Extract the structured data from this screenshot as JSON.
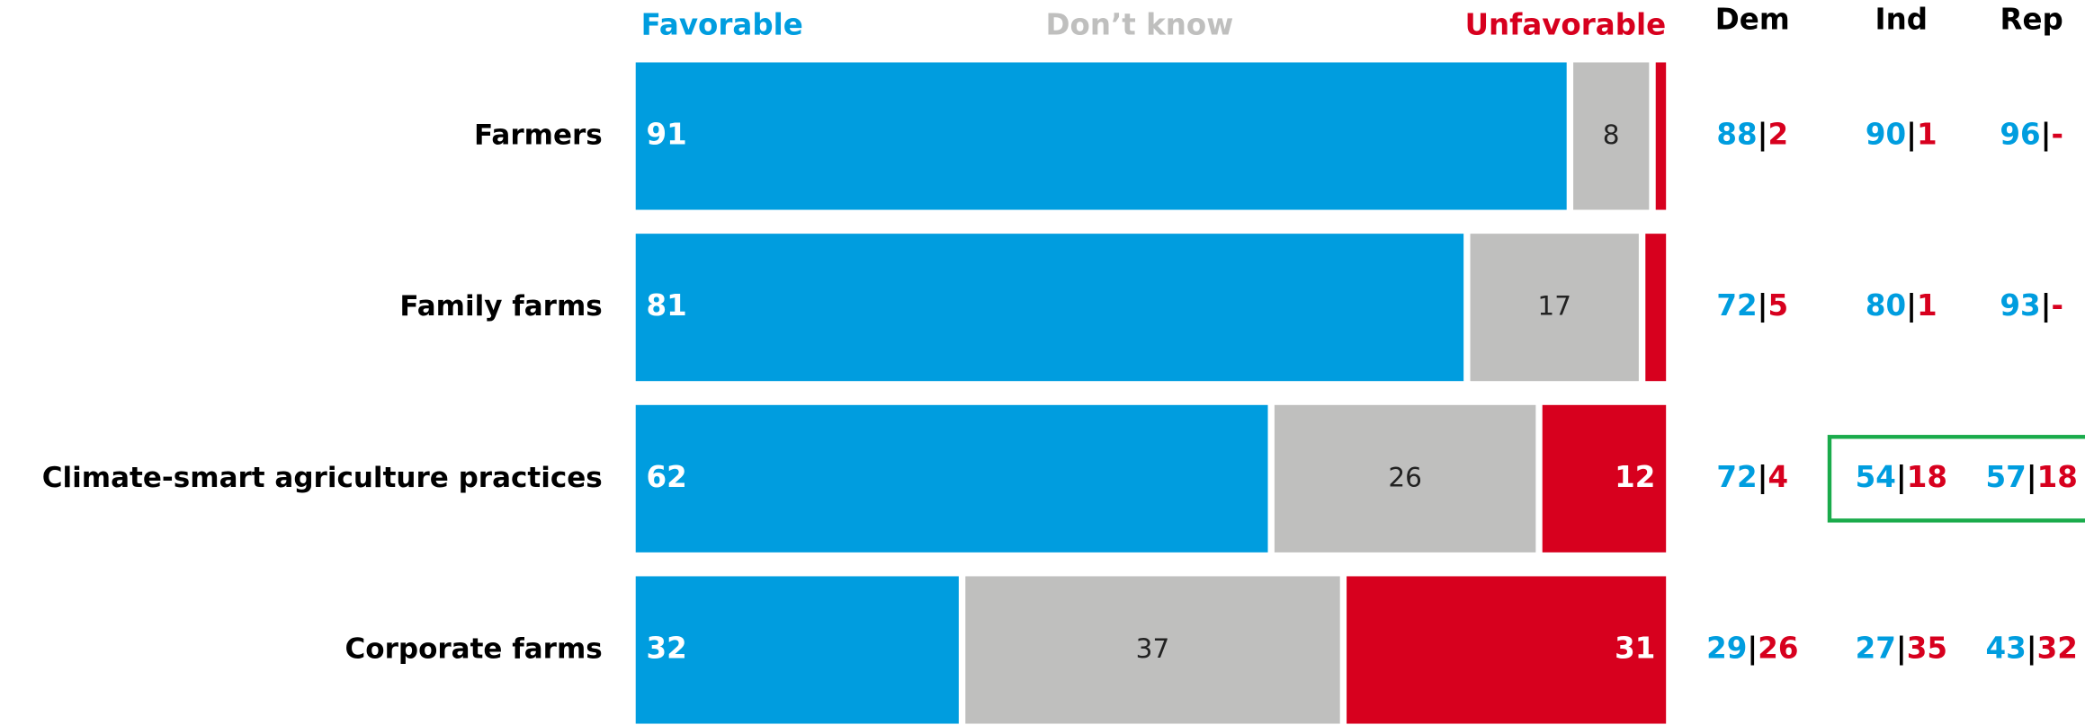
{
  "chart_data": {
    "type": "stacked_bar_horizontal",
    "categories": [
      "Farmers",
      "Family farms",
      "Climate-smart agriculture practices",
      "Corporate farms"
    ],
    "xlim": [
      0,
      100
    ],
    "series": [
      {
        "name": "Favorable",
        "color": "#009ddf",
        "values": [
          91,
          81,
          62,
          32
        ]
      },
      {
        "name": "Don’t know",
        "color": "#bfbfbe",
        "values": [
          8,
          17,
          26,
          37
        ]
      },
      {
        "name": "Unfavorable",
        "color": "#d7001e",
        "values": [
          1,
          2,
          12,
          31
        ],
        "value_labels": [
          null,
          null,
          "12",
          "31"
        ]
      }
    ],
    "party_table": {
      "columns": [
        "Dem",
        "Ind",
        "Rep"
      ],
      "separator": "|",
      "rows": [
        [
          {
            "favorable": 88,
            "unfavorable": 2
          },
          {
            "favorable": 90,
            "unfavorable": 1
          },
          {
            "favorable": 96,
            "unfavorable": "-"
          }
        ],
        [
          {
            "favorable": 72,
            "unfavorable": 5
          },
          {
            "favorable": 80,
            "unfavorable": 1
          },
          {
            "favorable": 93,
            "unfavorable": "-"
          }
        ],
        [
          {
            "favorable": 72,
            "unfavorable": 4
          },
          {
            "favorable": 54,
            "unfavorable": 18
          },
          {
            "favorable": 57,
            "unfavorable": 18
          }
        ],
        [
          {
            "favorable": 29,
            "unfavorable": 26
          },
          {
            "favorable": 27,
            "unfavorable": 35
          },
          {
            "favorable": 43,
            "unfavorable": 32
          }
        ]
      ]
    }
  }
}
